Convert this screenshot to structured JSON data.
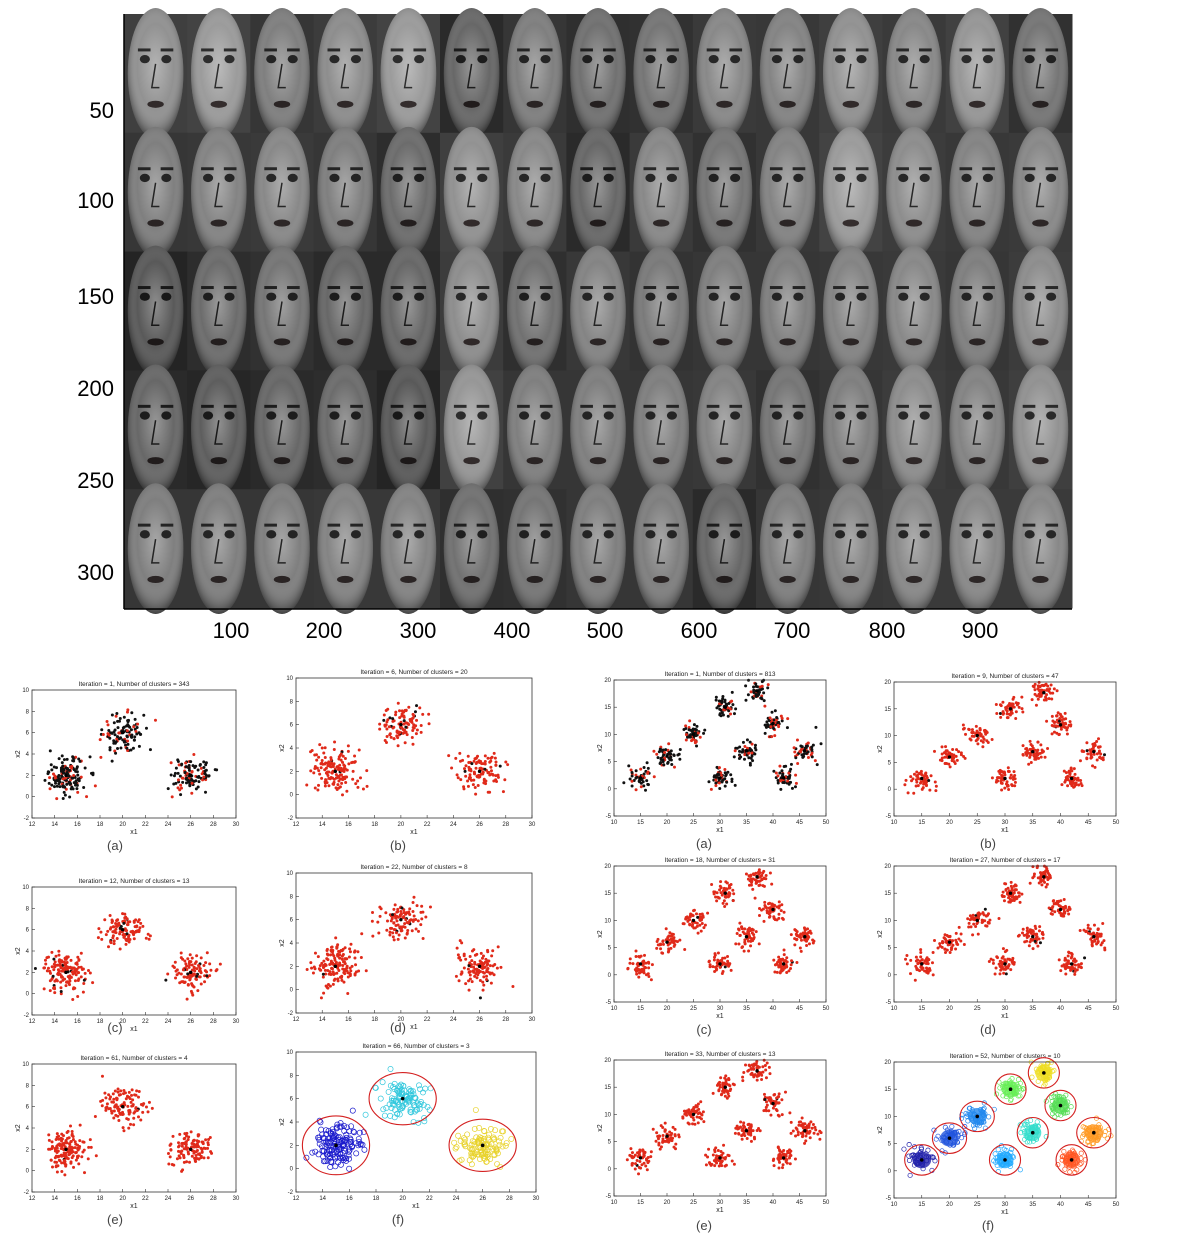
{
  "face_figure": {
    "y_ticks": [
      "50",
      "100",
      "150",
      "200",
      "250",
      "300"
    ],
    "x_ticks": [
      "100",
      "200",
      "300",
      "400",
      "500",
      "600",
      "700",
      "800",
      "900"
    ],
    "grid_rows": 5,
    "grid_cols": 15,
    "tile_shades": [
      [
        140,
        150,
        120,
        135,
        150,
        95,
        120,
        105,
        110,
        130,
        125,
        140,
        130,
        145,
        110
      ],
      [
        120,
        125,
        130,
        120,
        100,
        140,
        130,
        95,
        130,
        110,
        125,
        150,
        135,
        125,
        130
      ],
      [
        80,
        100,
        110,
        95,
        95,
        135,
        105,
        125,
        115,
        120,
        120,
        125,
        130,
        120,
        135
      ],
      [
        95,
        85,
        95,
        100,
        80,
        145,
        120,
        120,
        120,
        125,
        110,
        120,
        135,
        125,
        140
      ],
      [
        120,
        120,
        120,
        125,
        125,
        105,
        110,
        120,
        120,
        95,
        120,
        125,
        130,
        130,
        130
      ]
    ]
  },
  "scatter_panels": [
    {
      "id": "left-a",
      "title": "Iteration = 1, Number of clusters = 343",
      "caption": "(a)",
      "xlabel": "x1",
      "ylabel": "x2",
      "x_ticks": [
        "12",
        "14",
        "16",
        "18",
        "20",
        "22",
        "24",
        "26",
        "28",
        "30"
      ],
      "y_ticks": [
        "-2",
        "0",
        "2",
        "4",
        "6",
        "8",
        "10"
      ],
      "mode": "black",
      "black_fraction": 0.7
    },
    {
      "id": "left-b",
      "title": "Iteration = 6, Number of clusters = 20",
      "caption": "(b)",
      "xlabel": "x1",
      "ylabel": "x2",
      "x_ticks": [
        "12",
        "14",
        "16",
        "18",
        "20",
        "22",
        "24",
        "26",
        "28",
        "30"
      ],
      "y_ticks": [
        "-2",
        "0",
        "2",
        "4",
        "6",
        "8",
        "10"
      ],
      "mode": "mixed",
      "black_fraction": 0.07
    },
    {
      "id": "left-c",
      "title": "Iteration = 12, Number of clusters = 13",
      "caption": "(c)",
      "xlabel": "x1",
      "ylabel": "x2",
      "x_ticks": [
        "12",
        "14",
        "16",
        "18",
        "20",
        "22",
        "24",
        "26",
        "28",
        "30"
      ],
      "y_ticks": [
        "-2",
        "0",
        "2",
        "4",
        "6",
        "8",
        "10"
      ],
      "mode": "mixed",
      "black_fraction": 0.05
    },
    {
      "id": "left-d",
      "title": "Iteration = 22, Number of clusters = 8",
      "caption": "(d)",
      "xlabel": "x1",
      "ylabel": "x2",
      "x_ticks": [
        "12",
        "14",
        "16",
        "18",
        "20",
        "22",
        "24",
        "26",
        "28",
        "30"
      ],
      "y_ticks": [
        "-2",
        "0",
        "2",
        "4",
        "6",
        "8",
        "10"
      ],
      "mode": "mixed",
      "black_fraction": 0.03
    },
    {
      "id": "left-e",
      "title": "Iteration = 61, Number of clusters = 4",
      "caption": "(e)",
      "xlabel": "x1",
      "ylabel": "x2",
      "x_ticks": [
        "12",
        "14",
        "16",
        "18",
        "20",
        "22",
        "24",
        "26",
        "28",
        "30"
      ],
      "y_ticks": [
        "-2",
        "0",
        "2",
        "4",
        "6",
        "8",
        "10"
      ],
      "mode": "red",
      "black_fraction": 0.005
    },
    {
      "id": "left-f",
      "title": "Iteration = 66, Number of clusters = 3",
      "caption": "(f)",
      "xlabel": "x1",
      "ylabel": "x2",
      "x_ticks": [
        "12",
        "14",
        "16",
        "18",
        "20",
        "22",
        "24",
        "26",
        "28",
        "30"
      ],
      "y_ticks": [
        "-2",
        "0",
        "2",
        "4",
        "6",
        "8",
        "10"
      ],
      "mode": "colored",
      "black_fraction": 0
    },
    {
      "id": "right-a",
      "title": "Iteration = 1, Number of clusters = 813",
      "caption": "(a)",
      "xlabel": "x1",
      "ylabel": "x2",
      "x_ticks": [
        "10",
        "15",
        "20",
        "25",
        "30",
        "35",
        "40",
        "45",
        "50"
      ],
      "y_ticks": [
        "-5",
        "0",
        "5",
        "10",
        "15",
        "20"
      ],
      "mode": "black",
      "black_fraction": 0.7
    },
    {
      "id": "right-b",
      "title": "Iteration = 9, Number of clusters = 47",
      "caption": "(b)",
      "xlabel": "x1",
      "ylabel": "x2",
      "x_ticks": [
        "10",
        "15",
        "20",
        "25",
        "30",
        "35",
        "40",
        "45",
        "50"
      ],
      "y_ticks": [
        "-5",
        "0",
        "5",
        "10",
        "15",
        "20"
      ],
      "mode": "mixed",
      "black_fraction": 0.02
    },
    {
      "id": "right-c",
      "title": "Iteration = 18, Number of clusters = 31",
      "caption": "(c)",
      "xlabel": "x1",
      "ylabel": "x2",
      "x_ticks": [
        "10",
        "15",
        "20",
        "25",
        "30",
        "35",
        "40",
        "45",
        "50"
      ],
      "y_ticks": [
        "-5",
        "0",
        "5",
        "10",
        "15",
        "20"
      ],
      "mode": "mixed",
      "black_fraction": 0.015
    },
    {
      "id": "right-d",
      "title": "Iteration = 27, Number of clusters = 17",
      "caption": "(d)",
      "xlabel": "x1",
      "ylabel": "x2",
      "x_ticks": [
        "10",
        "15",
        "20",
        "25",
        "30",
        "35",
        "40",
        "45",
        "50"
      ],
      "y_ticks": [
        "-5",
        "0",
        "5",
        "10",
        "15",
        "20"
      ],
      "mode": "mixed",
      "black_fraction": 0.01
    },
    {
      "id": "right-e",
      "title": "Iteration = 33, Number of clusters = 13",
      "caption": "(e)",
      "xlabel": "x1",
      "ylabel": "x2",
      "x_ticks": [
        "10",
        "15",
        "20",
        "25",
        "30",
        "35",
        "40",
        "45",
        "50"
      ],
      "y_ticks": [
        "-5",
        "0",
        "5",
        "10",
        "15",
        "20"
      ],
      "mode": "red",
      "black_fraction": 0.005
    },
    {
      "id": "right-f",
      "title": "Iteration = 52, Number of clusters = 10",
      "caption": "(f)",
      "xlabel": "x1",
      "ylabel": "x2",
      "x_ticks": [
        "10",
        "15",
        "20",
        "25",
        "30",
        "35",
        "40",
        "45",
        "50"
      ],
      "y_ticks": [
        "-5",
        "0",
        "5",
        "10",
        "15",
        "20"
      ],
      "mode": "colored",
      "black_fraction": 0
    }
  ],
  "chart_data": [
    {
      "type": "scatter",
      "group": "left",
      "xlim": [
        12,
        30
      ],
      "ylim": [
        -2,
        10
      ],
      "xlabel": "x1",
      "ylabel": "x2",
      "clusters": [
        {
          "center": [
            15,
            2
          ],
          "spread": [
            0.9,
            0.9
          ],
          "count": 150,
          "color": "#1a1acc"
        },
        {
          "center": [
            20,
            6
          ],
          "spread": [
            0.9,
            0.8
          ],
          "count": 110,
          "color": "#33c8dd"
        },
        {
          "center": [
            26,
            2
          ],
          "spread": [
            0.9,
            0.8
          ],
          "count": 110,
          "color": "#e8d22a"
        }
      ]
    },
    {
      "type": "scatter",
      "group": "right",
      "xlim": [
        10,
        50
      ],
      "ylim": [
        -5,
        20
      ],
      "xlabel": "x1",
      "ylabel": "x2",
      "clusters": [
        {
          "center": [
            15,
            2
          ],
          "spread": [
            1.1,
            1.0
          ],
          "count": 50,
          "color": "#2222aa"
        },
        {
          "center": [
            20,
            6
          ],
          "spread": [
            1.1,
            1.0
          ],
          "count": 50,
          "color": "#2255dd"
        },
        {
          "center": [
            25,
            10
          ],
          "spread": [
            1.1,
            1.0
          ],
          "count": 50,
          "color": "#2288ee"
        },
        {
          "center": [
            30,
            2
          ],
          "spread": [
            1.0,
            1.0
          ],
          "count": 50,
          "color": "#22aaff"
        },
        {
          "center": [
            31,
            15
          ],
          "spread": [
            1.0,
            1.0
          ],
          "count": 50,
          "color": "#66ee55"
        },
        {
          "center": [
            35,
            7
          ],
          "spread": [
            1.0,
            1.0
          ],
          "count": 50,
          "color": "#33ddcc"
        },
        {
          "center": [
            37,
            18
          ],
          "spread": [
            1.0,
            1.0
          ],
          "count": 50,
          "color": "#eedd22"
        },
        {
          "center": [
            40,
            12
          ],
          "spread": [
            1.0,
            1.0
          ],
          "count": 50,
          "color": "#55dd55"
        },
        {
          "center": [
            42,
            2
          ],
          "spread": [
            1.0,
            1.0
          ],
          "count": 50,
          "color": "#ff5522"
        },
        {
          "center": [
            46,
            7
          ],
          "spread": [
            1.1,
            1.0
          ],
          "count": 50,
          "color": "#ff9922"
        }
      ]
    }
  ]
}
